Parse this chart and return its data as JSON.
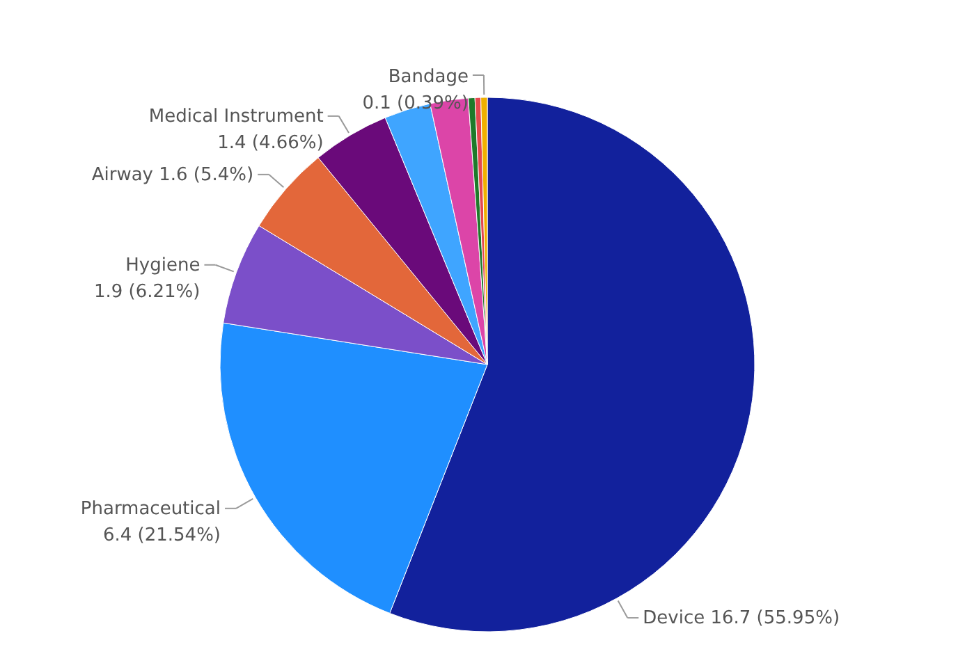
{
  "chart_data": {
    "type": "pie",
    "categories": [
      "Device",
      "Pharmaceutical",
      "Hygiene",
      "Airway",
      "Medical Instrument",
      null,
      null,
      null,
      null,
      "Bandage"
    ],
    "values": [
      55.95,
      21.54,
      6.21,
      5.4,
      4.66,
      2.8,
      2.3,
      0.4,
      0.35,
      0.39
    ],
    "value_labels": [
      "16.7 (55.95%)",
      "6.4 (21.54%)",
      "1.9 (6.21%)",
      "1.6 (5.4%)",
      "1.4 (4.66%)",
      null,
      null,
      null,
      null,
      "0.1 (0.39%)"
    ],
    "colors": [
      "#12219c",
      "#1f8fff",
      "#7b4fc9",
      "#e3673a",
      "#6a0a7a",
      "#3fa5ff",
      "#dc45a8",
      "#1e7a2a",
      "#e5484f",
      "#f0b000"
    ]
  }
}
